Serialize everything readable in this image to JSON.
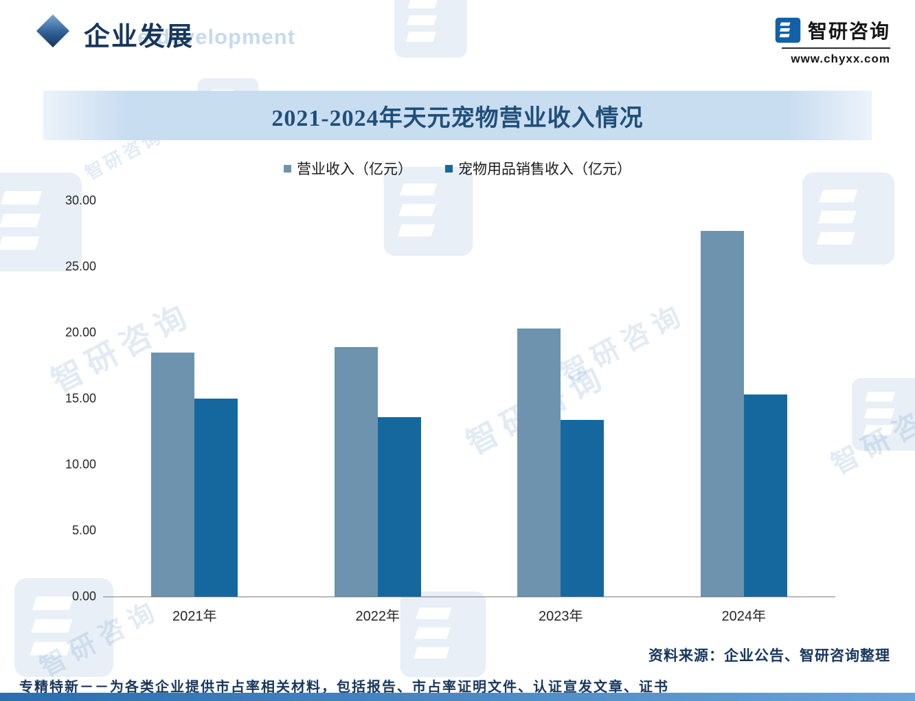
{
  "header": {
    "title": "企业发展",
    "watermark_text": "e development",
    "brand_name": "智研咨询",
    "brand_url": "www.chyxx.com"
  },
  "chart_data": {
    "type": "bar",
    "title": "2021-2024年天元宠物营业收入情况",
    "categories": [
      "2021年",
      "2022年",
      "2023年",
      "2024年"
    ],
    "series": [
      {
        "name": "营业收入（亿元）",
        "color": "#6D93AE",
        "values": [
          18.5,
          18.9,
          20.3,
          27.7
        ]
      },
      {
        "name": "宠物用品销售收入（亿元）",
        "color": "#15689E",
        "values": [
          15.0,
          13.6,
          13.4,
          15.3
        ]
      }
    ],
    "xlabel": "",
    "ylabel": "",
    "ylim": [
      0,
      30
    ],
    "yticks": [
      0,
      5,
      10,
      15,
      20,
      25,
      30
    ],
    "ytick_labels": [
      "0.00",
      "5.00",
      "10.00",
      "15.00",
      "20.00",
      "25.00",
      "30.00"
    ],
    "legend_position": "top",
    "grid": false
  },
  "footer": {
    "source": "资料来源：企业公告、智研咨询整理",
    "tagline": "专精特新－－为各类企业提供市占率相关材料，包括报告、市占率证明文件、认证宣发文章、证书"
  },
  "watermark": {
    "text": "智研咨询"
  },
  "colors": {
    "accent_dark": "#1F4E79",
    "banner_bg": "#C9DDF1",
    "series_1": "#6D93AE",
    "series_2": "#15689E",
    "bottom_bar": "#2E74B5",
    "logo_blue": "#1061A8"
  }
}
